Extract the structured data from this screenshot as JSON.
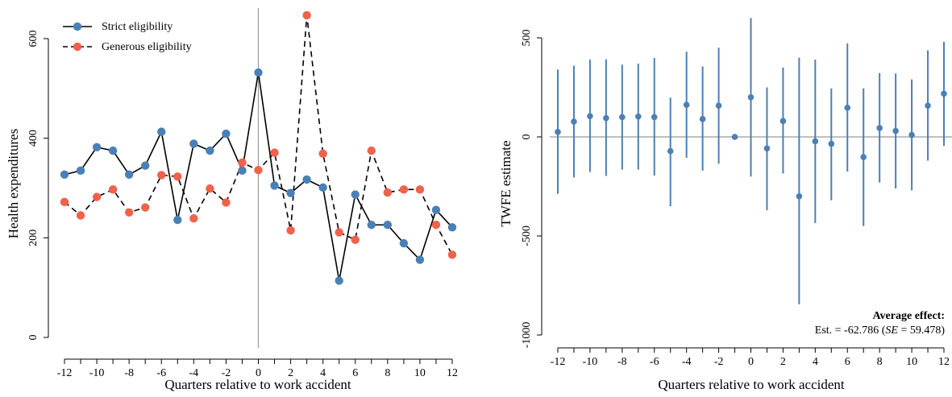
{
  "chart_data": [
    {
      "type": "line",
      "xlabel": "Quarters relative to work accident",
      "ylabel": "Health expenditures",
      "xlim": [
        -12.5,
        12.5
      ],
      "ylim": [
        -20,
        655
      ],
      "xticks": [
        -12,
        -10,
        -8,
        -6,
        -4,
        -2,
        0,
        2,
        4,
        6,
        8,
        10,
        12
      ],
      "xtick_labels": [
        "-12",
        "-10",
        "-8",
        "-6",
        "-4",
        "-2",
        "0",
        "2",
        "4",
        "6",
        "8",
        "10",
        "12"
      ],
      "yticks": [
        0,
        200,
        400,
        600
      ],
      "ytick_labels": [
        "0",
        "200",
        "400",
        "600"
      ],
      "vline_x": 0,
      "grid": false,
      "legend_position": "top-left",
      "x": [
        -12,
        -11,
        -10,
        -9,
        -8,
        -7,
        -6,
        -5,
        -4,
        -3,
        -2,
        -1,
        0,
        1,
        2,
        3,
        4,
        5,
        6,
        7,
        8,
        9,
        10,
        11,
        12
      ],
      "series": [
        {
          "name": "Strict eligibility",
          "color": "#4a80b5",
          "line_style": "solid",
          "values": [
            327,
            335,
            382,
            375,
            327,
            345,
            413,
            236,
            389,
            375,
            409,
            335,
            532,
            305,
            290,
            317,
            301,
            114,
            287,
            226,
            226,
            189,
            156,
            256,
            221
          ]
        },
        {
          "name": "Generous eligibility",
          "color": "#f0624b",
          "line_style": "dashed",
          "values": [
            272,
            245,
            282,
            297,
            251,
            261,
            326,
            323,
            239,
            299,
            271,
            351,
            336,
            371,
            215,
            647,
            369,
            211,
            196,
            375,
            291,
            297,
            297,
            226,
            166
          ]
        }
      ]
    },
    {
      "type": "errorbar",
      "xlabel": "Quarters relative to work accident",
      "ylabel": "TWFE estimate",
      "xlim": [
        -12.5,
        12.5
      ],
      "ylim": [
        -1050,
        600
      ],
      "xticks": [
        -12,
        -10,
        -8,
        -6,
        -4,
        -2,
        0,
        2,
        4,
        6,
        8,
        10,
        12
      ],
      "xtick_labels": [
        "-12",
        "-10",
        "-8",
        "-6",
        "-4",
        "-2",
        "0",
        "2",
        "4",
        "6",
        "8",
        "10",
        "12"
      ],
      "yticks": [
        -1000,
        -500,
        0,
        500
      ],
      "ytick_labels": [
        "-1000",
        "-500",
        "0",
        "500"
      ],
      "hline_y": 0,
      "grid": false,
      "color": "#4a80b5",
      "x": [
        -12,
        -11,
        -10,
        -9,
        -8,
        -7,
        -6,
        -5,
        -4,
        -3,
        -2,
        -1,
        0,
        1,
        2,
        3,
        4,
        5,
        6,
        7,
        8,
        9,
        10,
        11,
        12
      ],
      "estimates": [
        25,
        77,
        105,
        95,
        100,
        103,
        100,
        -72,
        162,
        90,
        158,
        0,
        200,
        -58,
        80,
        -300,
        -22,
        -35,
        147,
        -102,
        45,
        30,
        10,
        158,
        218
      ],
      "ci_lower": [
        -287,
        -205,
        -177,
        -197,
        -165,
        -165,
        -195,
        -350,
        -105,
        -170,
        -135,
        null,
        -200,
        -370,
        -185,
        -845,
        -435,
        -320,
        -175,
        -450,
        -230,
        -260,
        -270,
        -120,
        -45
      ],
      "ci_upper": [
        340,
        360,
        390,
        392,
        365,
        370,
        398,
        198,
        430,
        355,
        450,
        null,
        600,
        250,
        350,
        400,
        390,
        245,
        472,
        245,
        322,
        320,
        290,
        437,
        480
      ],
      "annotation": {
        "title": "Average effect:",
        "prefix": "Est. = -62.786 (",
        "se_label": "SE",
        "suffix": " = 59.478)"
      }
    }
  ]
}
